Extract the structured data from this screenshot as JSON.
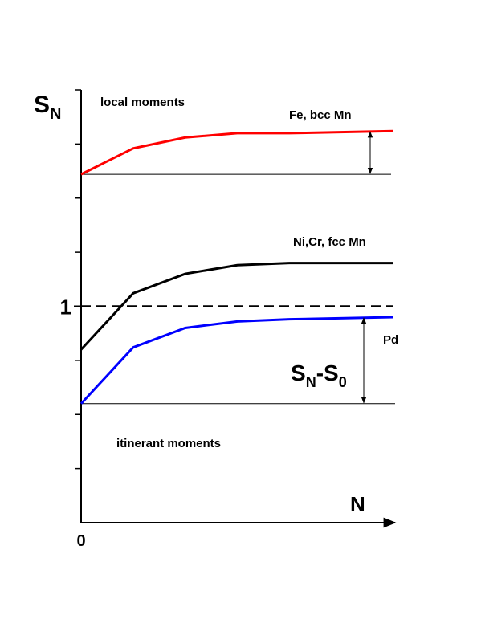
{
  "chart_data": {
    "type": "line",
    "y_label": [
      "S",
      "N"
    ],
    "x_label": "N",
    "xlim": [
      0,
      6
    ],
    "ylim": [
      0,
      2
    ],
    "xticks": [
      0
    ],
    "yticks": [
      1
    ],
    "minor_yticks": [
      0.25,
      0.5,
      0.75,
      1.25,
      1.5,
      1.75,
      2
    ],
    "x": [
      0,
      1,
      2,
      3,
      4,
      6
    ],
    "series": [
      {
        "name": "Fe, bcc Mn",
        "color": "#ff0000",
        "values": [
          1.61,
          1.73,
          1.78,
          1.8,
          1.8,
          1.81
        ]
      },
      {
        "name": "Ni,Cr, fcc Mn",
        "color": "#000000",
        "values": [
          0.8,
          1.06,
          1.15,
          1.19,
          1.2,
          1.2
        ]
      },
      {
        "name": "Pd",
        "color": "#0000ff",
        "values": [
          0.55,
          0.81,
          0.9,
          0.93,
          0.94,
          0.95
        ]
      }
    ],
    "reference_lines": [
      {
        "value": 1.61,
        "dashed": false
      },
      {
        "value": 0.55,
        "dashed": false
      },
      {
        "value": 1,
        "dashed": true
      }
    ],
    "arrows": [
      {
        "from": 1.61,
        "to": 1.81
      },
      {
        "from": 0.55,
        "to": 0.95
      }
    ],
    "arrow_label": [
      "S",
      "N",
      "-S",
      "0"
    ],
    "annotations": [
      "local moments",
      "itinerant moments"
    ]
  }
}
